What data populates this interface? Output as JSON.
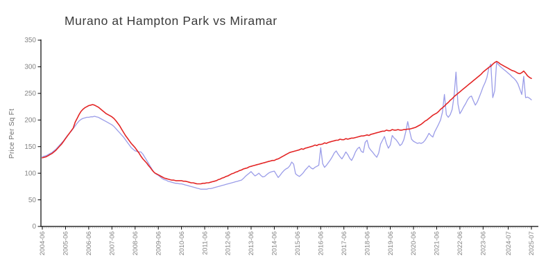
{
  "page": {
    "background": "#ffffff"
  },
  "chart_data": {
    "type": "line",
    "title": "Murano at Hampton Park vs Miramar",
    "xlabel": "",
    "ylabel": "Price Per Sq Ft",
    "ylim": [
      0,
      350
    ],
    "yticks": [
      0,
      50,
      100,
      150,
      200,
      250,
      300,
      350
    ],
    "grid": false,
    "legend": "none",
    "x_start_month": "2004-06",
    "x_end_month": "2025-07",
    "x_frequency": "monthly",
    "x_tick_labels": [
      "2004-06",
      "2005-06",
      "2006-06",
      "2007-06",
      "2008-06",
      "2009-06",
      "2010-06",
      "2011-06",
      "2012-06",
      "2013-06",
      "2014-06",
      "2015-06",
      "2016-06",
      "2017-06",
      "2018-06",
      "2019-06",
      "2020-06",
      "2021-06",
      "2022-06",
      "2023-06",
      "2024-07",
      "2025-07"
    ],
    "series": [
      {
        "name": "Murano at Hampton Park",
        "color": "#9a9ce8",
        "line_width": 1.3,
        "values": [
          131,
          132,
          133,
          135,
          137,
          139,
          142,
          145,
          149,
          153,
          157,
          161,
          166,
          171,
          175,
          179,
          184,
          189,
          194,
          198,
          201,
          203,
          204,
          205,
          205,
          206,
          206,
          207,
          206,
          205,
          203,
          201,
          199,
          197,
          195,
          193,
          191,
          188,
          184,
          180,
          176,
          172,
          168,
          163,
          158,
          153,
          148,
          145,
          142,
          141,
          140,
          140,
          136,
          130,
          124,
          118,
          112,
          106,
          101,
          98,
          96,
          93,
          90,
          88,
          87,
          85,
          84,
          83,
          82,
          81,
          81,
          80,
          80,
          79,
          78,
          77,
          76,
          75,
          74,
          73,
          72,
          71,
          70,
          70,
          70,
          70,
          71,
          71,
          72,
          73,
          74,
          75,
          76,
          77,
          78,
          79,
          80,
          81,
          82,
          83,
          84,
          85,
          86,
          87,
          90,
          94,
          97,
          100,
          103,
          99,
          95,
          97,
          100,
          96,
          93,
          94,
          97,
          100,
          102,
          103,
          104,
          98,
          92,
          96,
          101,
          105,
          108,
          110,
          114,
          121,
          117,
          99,
          96,
          94,
          97,
          101,
          106,
          110,
          114,
          110,
          108,
          111,
          113,
          115,
          148,
          118,
          111,
          115,
          120,
          125,
          131,
          138,
          142,
          136,
          131,
          127,
          133,
          140,
          135,
          128,
          124,
          131,
          140,
          146,
          149,
          141,
          139,
          158,
          162,
          148,
          143,
          139,
          134,
          130,
          138,
          155,
          162,
          169,
          156,
          147,
          153,
          171,
          166,
          163,
          158,
          152,
          155,
          163,
          178,
          197,
          180,
          164,
          160,
          158,
          156,
          157,
          156,
          158,
          162,
          168,
          175,
          171,
          168,
          178,
          185,
          192,
          200,
          215,
          248,
          210,
          205,
          210,
          220,
          245,
          290,
          230,
          212,
          218,
          225,
          231,
          238,
          243,
          245,
          236,
          228,
          234,
          243,
          252,
          262,
          270,
          280,
          298,
          305,
          242,
          255,
          308,
          304,
          300,
          297,
          294,
          291,
          288,
          285,
          281,
          278,
          274,
          268,
          258,
          248,
          282,
          242,
          243,
          241,
          238
        ]
      },
      {
        "name": "Miramar",
        "color": "#e32424",
        "line_width": 1.6,
        "values": [
          129,
          130,
          131,
          133,
          135,
          137,
          140,
          143,
          147,
          151,
          155,
          160,
          165,
          170,
          175,
          180,
          185,
          196,
          203,
          210,
          216,
          220,
          223,
          225,
          227,
          228,
          229,
          228,
          226,
          224,
          221,
          218,
          215,
          212,
          210,
          208,
          206,
          203,
          199,
          194,
          189,
          183,
          177,
          171,
          166,
          161,
          156,
          152,
          148,
          143,
          138,
          132,
          127,
          123,
          119,
          114,
          110,
          105,
          101,
          99,
          97,
          95,
          93,
          91,
          90,
          89,
          88,
          87,
          87,
          86,
          86,
          86,
          86,
          85,
          85,
          84,
          83,
          82,
          82,
          81,
          80,
          80,
          80,
          81,
          81,
          82,
          82,
          83,
          84,
          85,
          86,
          88,
          89,
          91,
          92,
          94,
          95,
          97,
          99,
          100,
          102,
          103,
          105,
          106,
          108,
          109,
          110,
          112,
          113,
          114,
          115,
          116,
          117,
          118,
          119,
          120,
          121,
          122,
          123,
          124,
          124,
          126,
          127,
          129,
          131,
          133,
          135,
          137,
          139,
          140,
          141,
          142,
          143,
          144,
          146,
          145,
          147,
          148,
          149,
          150,
          151,
          153,
          152,
          154,
          154,
          155,
          157,
          156,
          158,
          159,
          160,
          161,
          162,
          162,
          164,
          163,
          163,
          165,
          164,
          165,
          166,
          166,
          167,
          168,
          169,
          170,
          170,
          171,
          172,
          171,
          173,
          174,
          175,
          176,
          177,
          178,
          179,
          179,
          181,
          180,
          180,
          182,
          181,
          181,
          182,
          181,
          181,
          182,
          182,
          183,
          183,
          184,
          185,
          186,
          188,
          190,
          192,
          195,
          198,
          200,
          203,
          206,
          209,
          211,
          213,
          216,
          220,
          223,
          226,
          230,
          233,
          237,
          240,
          244,
          247,
          250,
          253,
          256,
          259,
          262,
          265,
          268,
          271,
          274,
          277,
          280,
          283,
          286,
          290,
          293,
          296,
          299,
          301,
          305,
          308,
          310,
          308,
          305,
          303,
          301,
          299,
          297,
          295,
          293,
          292,
          290,
          288,
          287,
          289,
          292,
          288,
          283,
          280,
          278
        ]
      }
    ]
  }
}
